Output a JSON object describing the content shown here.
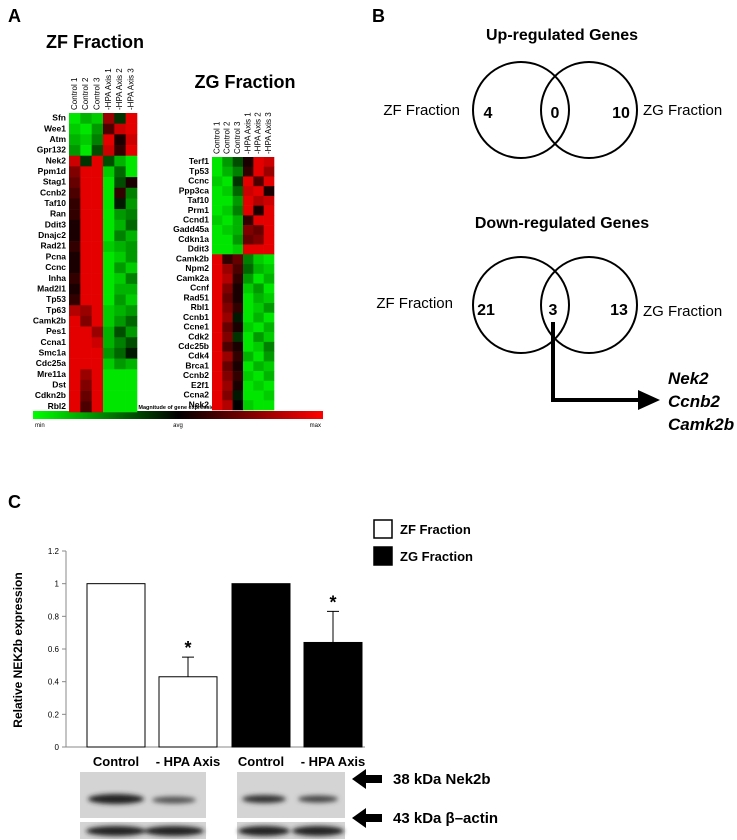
{
  "panel_labels": [
    "A",
    "B",
    "C"
  ],
  "heatmaps": [
    {
      "title": "ZF Fraction",
      "columns": [
        "Control 1",
        "Control 2",
        "Control 3",
        "-HPA Axis 1",
        "-HPA Axis 2",
        "-HPA Axis 3"
      ],
      "genes": [
        "Sfn",
        "Wee1",
        "Atm",
        "Gpr132",
        "Nek2",
        "Ppm1d",
        "Stag1",
        "Ccnb2",
        "Taf10",
        "Ran",
        "Ddit3",
        "Dnajc2",
        "Rad21",
        "Pcna",
        "Ccnc",
        "Inha",
        "Mad2l1",
        "Tp53",
        "Tp63",
        "Camk2b",
        "Pes1",
        "Ccna1",
        "Smc1a",
        "Cdc25a",
        "Mre11a",
        "Dst",
        "Cdkn2b",
        "Rbl2"
      ],
      "values": [
        [
          -0.9,
          -0.7,
          -0.8,
          0.6,
          -0.2,
          0.9
        ],
        [
          -0.8,
          -0.9,
          -0.6,
          0.3,
          0.8,
          0.9
        ],
        [
          -0.7,
          -0.8,
          -0.5,
          0.9,
          0.1,
          0.8
        ],
        [
          -0.6,
          -0.9,
          -0.3,
          0.8,
          0.2,
          0.9
        ],
        [
          0.8,
          -0.2,
          0.9,
          -0.3,
          -0.7,
          -0.9
        ],
        [
          0.5,
          0.9,
          0.9,
          -0.8,
          -0.4,
          -0.9
        ],
        [
          0.4,
          0.9,
          0.9,
          -0.9,
          -0.3,
          0.1
        ],
        [
          0.3,
          0.9,
          0.9,
          -0.9,
          0.2,
          -0.5
        ],
        [
          0.2,
          0.9,
          0.9,
          -0.9,
          -0.1,
          -0.6
        ],
        [
          0.2,
          0.9,
          0.9,
          -0.9,
          -0.6,
          -0.5
        ],
        [
          0.1,
          0.9,
          0.9,
          -0.9,
          -0.7,
          -0.4
        ],
        [
          0.1,
          0.9,
          0.9,
          -0.9,
          -0.5,
          -0.7
        ],
        [
          0.2,
          0.9,
          0.9,
          -0.8,
          -0.7,
          -0.6
        ],
        [
          0.1,
          0.9,
          0.9,
          -0.9,
          -0.8,
          -0.6
        ],
        [
          0.1,
          0.9,
          0.9,
          -0.9,
          -0.6,
          -0.8
        ],
        [
          0.2,
          0.9,
          0.9,
          -0.9,
          -0.8,
          -0.5
        ],
        [
          0.1,
          0.9,
          0.9,
          -0.9,
          -0.7,
          -0.7
        ],
        [
          0.2,
          0.9,
          0.9,
          -0.9,
          -0.6,
          -0.8
        ],
        [
          0.7,
          0.6,
          0.9,
          -0.8,
          -0.7,
          -0.6
        ],
        [
          0.9,
          0.5,
          0.9,
          -0.8,
          -0.6,
          -0.4
        ],
        [
          0.9,
          0.9,
          0.6,
          -0.7,
          -0.3,
          -0.6
        ],
        [
          0.9,
          0.9,
          0.8,
          -0.7,
          -0.5,
          -0.3
        ],
        [
          0.9,
          0.9,
          0.9,
          -0.6,
          -0.4,
          -0.1
        ],
        [
          0.9,
          0.9,
          0.9,
          -0.8,
          -0.6,
          -0.7
        ],
        [
          0.9,
          0.6,
          0.9,
          -0.9,
          -0.9,
          -0.9
        ],
        [
          0.9,
          0.5,
          0.9,
          -0.9,
          -0.9,
          -0.9
        ],
        [
          0.9,
          0.4,
          0.9,
          -0.9,
          -0.9,
          -0.9
        ],
        [
          0.9,
          0.3,
          0.9,
          -0.9,
          -0.9,
          -0.9
        ]
      ]
    },
    {
      "title": "ZG Fraction",
      "columns": [
        "Control 1",
        "Control 2",
        "Control 3",
        "-HPA Axis 1",
        "-HPA Axis 2",
        "-HPA Axis 3"
      ],
      "genes": [
        "Terf1",
        "Tp53",
        "Ccnc",
        "Ppp3ca",
        "Taf10",
        "Prm1",
        "Ccnd1",
        "Gadd45a",
        "Cdkn1a",
        "Ddit3",
        "Camk2b",
        "Npm2",
        "Camk2a",
        "Ccnf",
        "Rad51",
        "Rbl1",
        "Ccnb1",
        "Ccne1",
        "Cdk2",
        "Cdc25b",
        "Cdk4",
        "Brca1",
        "Ccnb2",
        "E2f1",
        "Ccna2",
        "Nek2"
      ],
      "values": [
        [
          -0.9,
          -0.6,
          -0.3,
          0.1,
          0.9,
          0.8
        ],
        [
          -0.9,
          -0.7,
          -0.5,
          0.2,
          0.9,
          0.6
        ],
        [
          -0.8,
          -0.9,
          -0.2,
          0.9,
          0.3,
          0.9
        ],
        [
          -0.9,
          -0.8,
          -0.4,
          0.8,
          0.9,
          0.1
        ],
        [
          -0.9,
          -0.9,
          -0.6,
          0.9,
          0.7,
          0.8
        ],
        [
          -0.9,
          -0.8,
          -0.5,
          0.9,
          0.1,
          0.9
        ],
        [
          -0.8,
          -0.9,
          -0.7,
          0.2,
          0.9,
          0.9
        ],
        [
          -0.9,
          -0.8,
          -0.7,
          0.5,
          0.4,
          0.9
        ],
        [
          -0.9,
          -0.9,
          -0.6,
          0.4,
          0.5,
          0.9
        ],
        [
          -0.9,
          -0.9,
          -0.8,
          0.9,
          0.9,
          0.9
        ],
        [
          0.9,
          0.2,
          0.4,
          -0.5,
          -0.8,
          -0.9
        ],
        [
          0.9,
          0.6,
          0.3,
          -0.4,
          -0.7,
          -0.8
        ],
        [
          0.9,
          0.7,
          0.2,
          -0.6,
          -0.9,
          -0.7
        ],
        [
          0.9,
          0.5,
          0.1,
          -0.8,
          -0.6,
          -0.9
        ],
        [
          0.9,
          0.4,
          0.1,
          -0.9,
          -0.7,
          -0.8
        ],
        [
          0.9,
          0.5,
          0.2,
          -0.9,
          -0.8,
          -0.6
        ],
        [
          0.9,
          0.6,
          -0.1,
          -0.9,
          -0.7,
          -0.9
        ],
        [
          0.9,
          0.4,
          0.1,
          -0.8,
          -0.9,
          -0.7
        ],
        [
          0.9,
          0.5,
          -0.2,
          -0.9,
          -0.6,
          -0.8
        ],
        [
          0.9,
          0.3,
          0.1,
          -0.9,
          -0.8,
          -0.5
        ],
        [
          0.9,
          0.6,
          0.2,
          -0.7,
          -0.9,
          -0.6
        ],
        [
          0.9,
          0.4,
          0.1,
          -0.9,
          -0.7,
          -0.8
        ],
        [
          0.9,
          0.5,
          0.2,
          -0.8,
          -0.9,
          -0.7
        ],
        [
          0.9,
          0.6,
          0.1,
          -0.9,
          -0.8,
          -0.9
        ],
        [
          0.9,
          0.5,
          -0.1,
          -0.9,
          -0.9,
          -0.8
        ],
        [
          0.9,
          0.7,
          0.0,
          -0.8,
          -0.9,
          -0.9
        ]
      ]
    }
  ],
  "color_scale": {
    "title": "Magnitude of gene expression",
    "min_label": "min",
    "avg_label": "avg",
    "max_label": "max",
    "lim": [
      -1,
      1
    ]
  },
  "venn": [
    {
      "title": "Up-regulated Genes",
      "left_label": "ZF Fraction",
      "right_label": "ZG Fraction",
      "left_only": 4,
      "both": 0,
      "right_only": 10
    },
    {
      "title": "Down-regulated Genes",
      "left_label": "ZF Fraction",
      "right_label": "ZG Fraction",
      "left_only": 21,
      "both": 3,
      "right_only": 13,
      "shared_genes": [
        "Nek2",
        "Ccnb2",
        "Camk2b"
      ]
    }
  ],
  "chart_data": {
    "type": "bar",
    "y_label": "Relative NEK2b expression",
    "categories": [
      "Control",
      "- HPA Axis",
      "Control",
      "- HPA Axis"
    ],
    "series": [
      {
        "name": "ZF Fraction",
        "color": "#ffffff",
        "values": [
          1,
          0.43,
          null,
          null
        ],
        "errors": [
          null,
          0.12,
          null,
          null
        ]
      },
      {
        "name": "ZG Fraction",
        "color": "#000000",
        "values": [
          null,
          null,
          1,
          0.64
        ],
        "errors": [
          null,
          null,
          null,
          0.19
        ]
      }
    ],
    "annotations": [
      "*",
      "*"
    ],
    "ylim": [
      0,
      1.2
    ],
    "yticks": [
      0,
      0.2,
      0.4,
      0.6,
      0.8,
      1,
      1.2
    ]
  },
  "blots": {
    "labels": [
      "38 kDa Nek2b",
      "43 kDa β–actin"
    ]
  }
}
